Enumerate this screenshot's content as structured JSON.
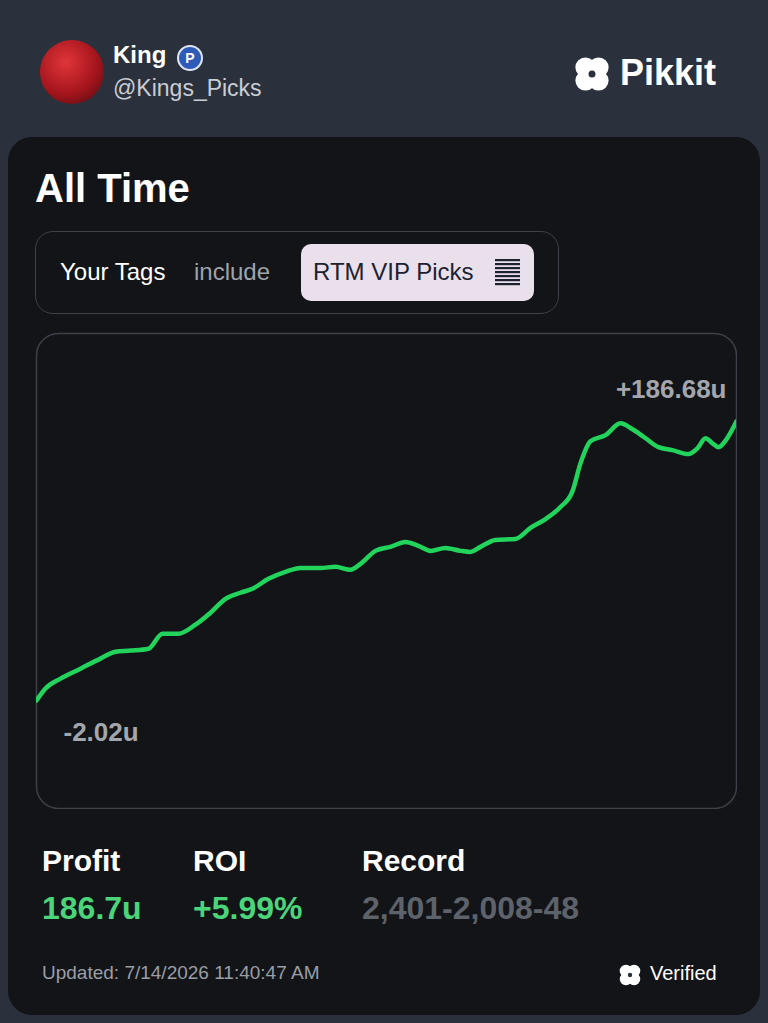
{
  "header": {
    "name": "King",
    "handle": "@Kings_Picks",
    "brand": "Pikkit"
  },
  "card": {
    "title": "All Time",
    "filter": {
      "label": "Your Tags",
      "operator": "include",
      "tag": "RTM VIP Picks"
    }
  },
  "chart_data": {
    "type": "line",
    "color": "#22d35c",
    "grid": false,
    "tick_labels": false,
    "xlim": [
      0,
      4457
    ],
    "ylim": [
      -75,
      246
    ],
    "x": [
      0,
      57,
      153,
      280,
      407,
      503,
      599,
      713,
      802,
      904,
      1012,
      1108,
      1203,
      1299,
      1375,
      1477,
      1585,
      1681,
      1808,
      1904,
      1999,
      2063,
      2158,
      2254,
      2349,
      2432,
      2509,
      2604,
      2700,
      2763,
      2827,
      2922,
      3050,
      3145,
      3241,
      3336,
      3413,
      3464,
      3527,
      3623,
      3718,
      3795,
      3878,
      3960,
      4049,
      4151,
      4209,
      4260,
      4304,
      4342,
      4393,
      4457
    ],
    "values": [
      -2.02,
      6.1,
      12.8,
      19.5,
      26.3,
      31.0,
      31.7,
      33.0,
      43.1,
      43.1,
      49.2,
      57.3,
      66.7,
      70.8,
      73.5,
      80.2,
      84.9,
      87.6,
      87.6,
      88.3,
      86.3,
      90.3,
      99.1,
      101.8,
      105.1,
      102.5,
      99.1,
      101.1,
      99.1,
      98.4,
      101.8,
      106.5,
      107.2,
      114.6,
      120.6,
      128.7,
      139.5,
      158.4,
      173.2,
      177.3,
      185.3,
      181.3,
      175.2,
      169.2,
      167.2,
      164.5,
      168.5,
      175.2,
      171.8,
      169.2,
      174.5,
      186.68
    ],
    "annotations": [
      {
        "label": "+186.68u",
        "value": 186.68
      },
      {
        "label": "-2.02u",
        "value": -2.02
      }
    ]
  },
  "stats": [
    {
      "label": "Profit",
      "value": "186.7u"
    },
    {
      "label": "ROI",
      "value": "+5.99%"
    },
    {
      "label": "Record",
      "value": "2,401-2,008-48"
    }
  ],
  "footer": {
    "updated": "Updated: 7/14/2026 11:40:47 AM",
    "badge": "Verified"
  }
}
